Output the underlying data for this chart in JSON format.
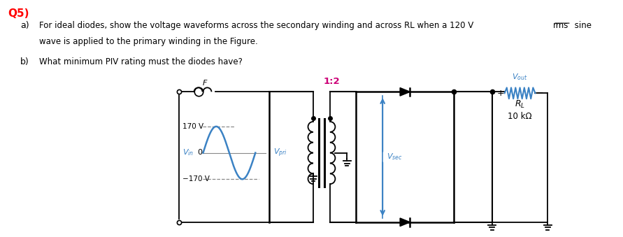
{
  "bg_color": "#ffffff",
  "text_color": "#000000",
  "blue_color": "#3B82C4",
  "red_color": "#FF0000",
  "magenta_color": "#CC0077",
  "gray_color": "#888888",
  "dark_color": "#222222",
  "title": "Q5)",
  "label_ratio": "1:2",
  "label_F": "F",
  "wave_amp": 0.38,
  "n_coils_pri": 6,
  "n_coils_sec": 6,
  "coil_r": 0.075
}
